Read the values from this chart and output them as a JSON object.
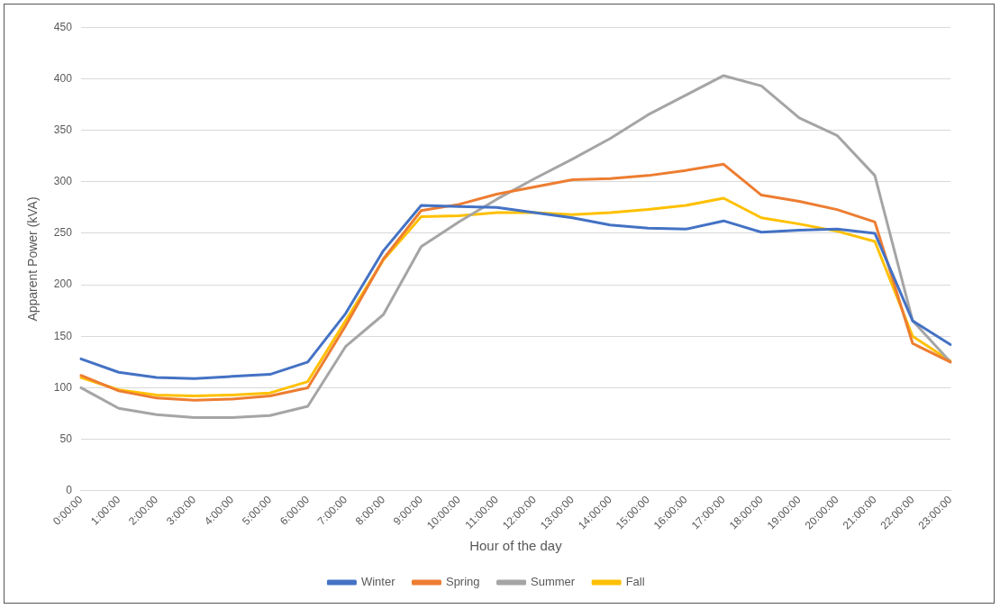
{
  "chart_data": {
    "type": "line",
    "xlabel": "Hour of the day",
    "ylabel": "Apparent Power (kVA)",
    "categories": [
      "0:00:00",
      "1:00:00",
      "2:00:00",
      "3:00:00",
      "4:00:00",
      "5:00:00",
      "6:00:00",
      "7:00:00",
      "8:00:00",
      "9:00:00",
      "10:00:00",
      "11:00:00",
      "12:00:00",
      "13:00:00",
      "14:00:00",
      "15:00:00",
      "16:00:00",
      "17:00:00",
      "18:00:00",
      "19:00:00",
      "20:00:00",
      "21:00:00",
      "22:00:00",
      "23:00:00"
    ],
    "series": [
      {
        "name": "Winter",
        "color": "#4472c4",
        "values": [
          128,
          115,
          110,
          109,
          111,
          113,
          125,
          172,
          233,
          277,
          276,
          275,
          270,
          265,
          258,
          255,
          254,
          262,
          251,
          253,
          254,
          250,
          165,
          142
        ]
      },
      {
        "name": "Spring",
        "color": "#ed7d31",
        "values": [
          112,
          97,
          90,
          88,
          89,
          92,
          100,
          160,
          225,
          272,
          278,
          288,
          295,
          302,
          303,
          306,
          311,
          317,
          287,
          281,
          273,
          261,
          143,
          125
        ]
      },
      {
        "name": "Summer",
        "color": "#a5a5a5",
        "values": [
          100,
          80,
          74,
          71,
          71,
          73,
          82,
          140,
          171,
          237,
          261,
          283,
          303,
          322,
          342,
          365,
          384,
          403,
          393,
          362,
          345,
          306,
          165,
          125
        ]
      },
      {
        "name": "Fall",
        "color": "#ffc000",
        "values": [
          110,
          98,
          93,
          92,
          93,
          95,
          106,
          165,
          224,
          266,
          267,
          270,
          270,
          268,
          270,
          273,
          277,
          284,
          265,
          259,
          252,
          242,
          150,
          126
        ]
      }
    ],
    "ylim": [
      0,
      450
    ],
    "yticks": [
      0,
      50,
      100,
      150,
      200,
      250,
      300,
      350,
      400,
      450
    ],
    "grid": "y",
    "legend": "bottom",
    "marker": "none",
    "line_style": "solid"
  }
}
